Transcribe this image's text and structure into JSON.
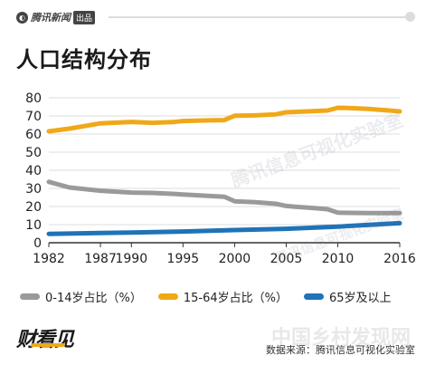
{
  "header": {
    "brand": "腾讯新闻",
    "badge": "出品"
  },
  "title": "人口结构分布",
  "colors": {
    "youth": "#9a9a9a",
    "working": "#f0a818",
    "elderly": "#1f73b7",
    "grid": "#dddddd",
    "axis": "#333333",
    "text": "#222222"
  },
  "chart_data": {
    "type": "line",
    "x": [
      1982,
      1987,
      1990,
      1995,
      2000,
      2005,
      2010,
      2016
    ],
    "xticks": [
      "1982",
      "1987",
      "1990",
      "1995",
      "2000",
      "2005",
      "2010",
      "2016"
    ],
    "yticks": [
      "0",
      "10",
      "20",
      "30",
      "40",
      "50",
      "60",
      "70",
      "80"
    ],
    "ylim": [
      0,
      80
    ],
    "grid": true,
    "legend_position": "bottom",
    "series": [
      {
        "name": "0-14岁占比（%）",
        "color_key": "youth",
        "points": [
          [
            1982,
            33.6
          ],
          [
            1984,
            30.5
          ],
          [
            1987,
            28.7
          ],
          [
            1990,
            27.7
          ],
          [
            1992,
            27.5
          ],
          [
            1994,
            27.0
          ],
          [
            1995,
            26.6
          ],
          [
            1997,
            26.0
          ],
          [
            1999,
            25.4
          ],
          [
            2000,
            22.9
          ],
          [
            2002,
            22.4
          ],
          [
            2004,
            21.5
          ],
          [
            2005,
            20.3
          ],
          [
            2006,
            19.8
          ],
          [
            2008,
            19.0
          ],
          [
            2009,
            18.5
          ],
          [
            2010,
            16.6
          ],
          [
            2011,
            16.5
          ],
          [
            2013,
            16.4
          ],
          [
            2016,
            16.4
          ]
        ]
      },
      {
        "name": "15-64岁占比（%）",
        "color_key": "working",
        "points": [
          [
            1982,
            61.5
          ],
          [
            1984,
            63.0
          ],
          [
            1987,
            65.9
          ],
          [
            1990,
            66.7
          ],
          [
            1992,
            66.2
          ],
          [
            1994,
            66.6
          ],
          [
            1995,
            67.2
          ],
          [
            1997,
            67.5
          ],
          [
            1999,
            67.7
          ],
          [
            2000,
            70.1
          ],
          [
            2002,
            70.3
          ],
          [
            2004,
            70.9
          ],
          [
            2005,
            72.0
          ],
          [
            2007,
            72.5
          ],
          [
            2009,
            73.0
          ],
          [
            2010,
            74.5
          ],
          [
            2011,
            74.4
          ],
          [
            2013,
            73.9
          ],
          [
            2015,
            73.0
          ],
          [
            2016,
            72.5
          ]
        ]
      },
      {
        "name": "65岁及以上",
        "color_key": "elderly",
        "points": [
          [
            1982,
            4.9
          ],
          [
            1987,
            5.4
          ],
          [
            1990,
            5.6
          ],
          [
            1995,
            6.2
          ],
          [
            2000,
            7.0
          ],
          [
            2005,
            7.7
          ],
          [
            2010,
            8.9
          ],
          [
            2016,
            10.8
          ]
        ]
      }
    ]
  },
  "footer": {
    "logo": "财看见",
    "source": "数据来源：腾讯信息可视化实验室"
  },
  "watermarks": [
    "腾讯信息可视化实验室",
    "腾讯信息可视化实验室",
    "中国乡村发现网"
  ]
}
